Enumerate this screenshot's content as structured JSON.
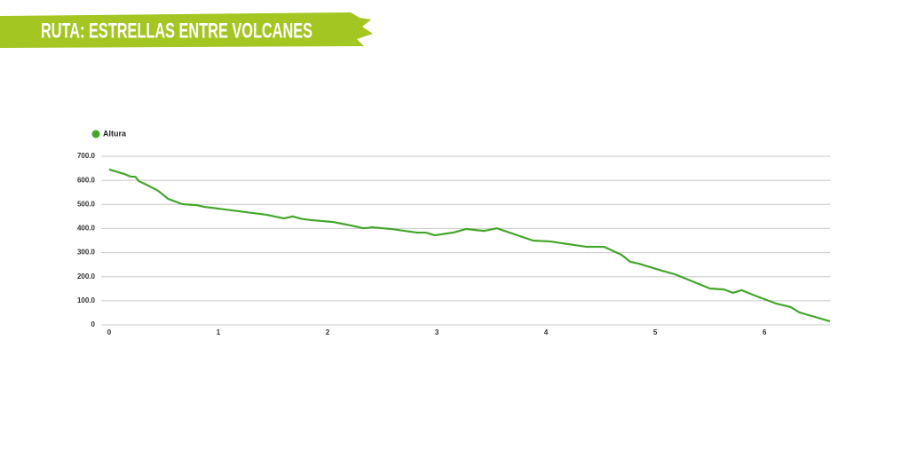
{
  "chart_data": {
    "type": "line",
    "title": "RUTA: ESTRELLAS ENTRE VOLCANES",
    "x": [
      0,
      0.14,
      0.2,
      0.24,
      0.27,
      0.34,
      0.45,
      0.54,
      0.67,
      0.8,
      0.87,
      1.44,
      1.6,
      1.68,
      1.76,
      1.85,
      2.05,
      2.13,
      2.21,
      2.33,
      2.41,
      2.58,
      2.82,
      2.9,
      2.98,
      3.15,
      3.27,
      3.43,
      3.55,
      3.88,
      4.04,
      4.37,
      4.53,
      4.69,
      4.77,
      4.85,
      4.98,
      5.06,
      5.18,
      5.5,
      5.63,
      5.71,
      5.79,
      5.91,
      6.11,
      6.24,
      6.32,
      6.4,
      6.6
    ],
    "series": [
      {
        "name": "Altura",
        "color": "#43a62a",
        "values": [
          645,
          626,
          615,
          615,
          597,
          582,
          556,
          523,
          501,
          497,
          490,
          457,
          442,
          450,
          440,
          435,
          427,
          420,
          413,
          401,
          405,
          398,
          383,
          383,
          372,
          383,
          398,
          390,
          401,
          350,
          346,
          324,
          324,
          291,
          262,
          254,
          236,
          225,
          210,
          151,
          147,
          133,
          144,
          122,
          88,
          74,
          52,
          41,
          15
        ]
      }
    ],
    "xlim": [
      0,
      6.6
    ],
    "xticks": [
      0,
      1,
      2,
      3,
      4,
      5,
      6
    ],
    "ylim": [
      0,
      700
    ],
    "yticks": [
      0,
      {
        "value": 100,
        "label": "100.0"
      },
      {
        "value": 200,
        "label": "200.0"
      },
      {
        "value": 300,
        "label": "300.0"
      },
      {
        "value": 400,
        "label": "400.0"
      },
      {
        "value": 500,
        "label": "500.0"
      },
      {
        "value": 600,
        "label": "600.0"
      },
      {
        "value": 700,
        "label": "700.0"
      }
    ],
    "grid": true,
    "legend": "top-left"
  }
}
